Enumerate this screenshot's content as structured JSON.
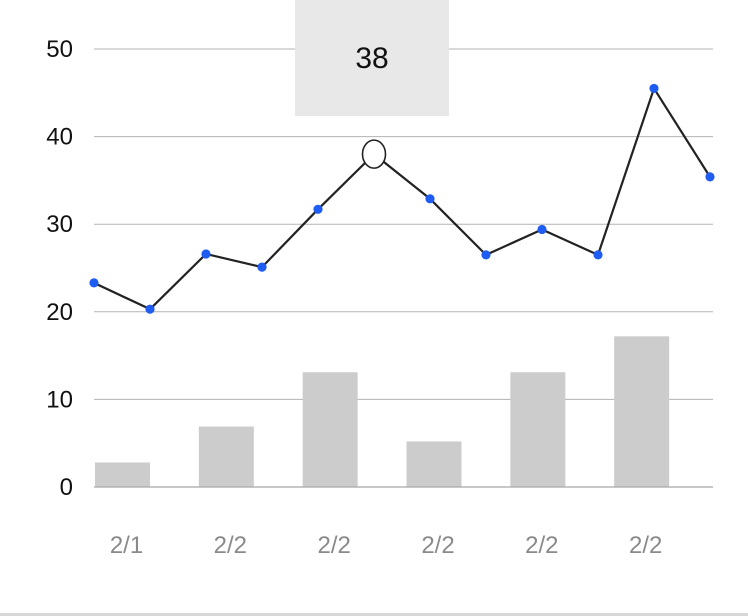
{
  "chart_data": {
    "type": "bar+line",
    "title": "",
    "xlabel": "",
    "ylabel": "",
    "ylim": [
      0,
      50
    ],
    "yticks": [
      0,
      10,
      20,
      30,
      40,
      50
    ],
    "grid": true,
    "x_tick_labels": [
      "2/1",
      "2/2",
      "2/2",
      "2/2",
      "2/2",
      "2/2"
    ],
    "bars": {
      "values": [
        2.8,
        6.9,
        13.1,
        5.2,
        13.1,
        17.2
      ],
      "color": "#cccccc"
    },
    "line": {
      "values": [
        23.3,
        20.3,
        26.6,
        25.1,
        31.7,
        38,
        32.9,
        26.5,
        29.4,
        26.5,
        45.5,
        35.4
      ],
      "color": "#222222",
      "point_color": "#1f5cf2",
      "highlighted_index": 5
    },
    "tooltip": {
      "value": "38"
    }
  }
}
